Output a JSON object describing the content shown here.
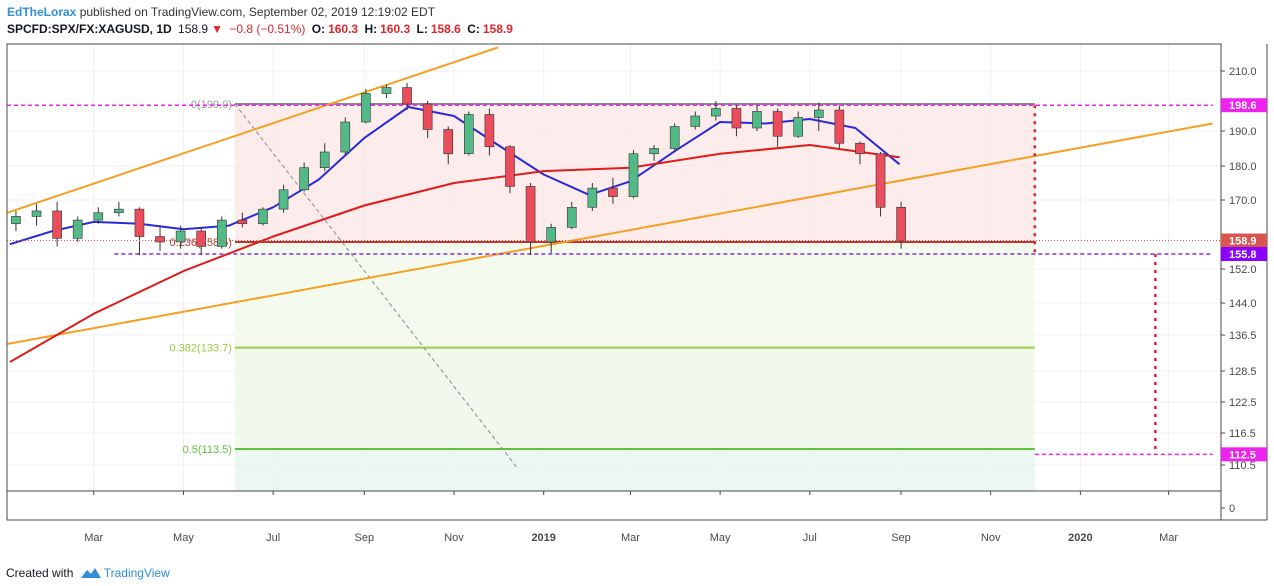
{
  "header": {
    "author": "EdTheLorax",
    "published": "published on TradingView.com, September 02, 2019 12:19:02 EDT",
    "symbol": "SPCFD:SPX/FX:XAGUSD, 1D",
    "last": "158.9",
    "change": "−0.8 (−0.51%)",
    "o_label": "O:",
    "o_value": "160.3",
    "h_label": "H:",
    "h_value": "160.3",
    "l_label": "L:",
    "l_value": "158.6",
    "c_label": "C:",
    "c_value": "158.9"
  },
  "footer": {
    "created_with": "Created with",
    "brand": "TradingView"
  },
  "colors": {
    "up": "#53b987",
    "down": "#eb4d5c",
    "ma_fast": "#2a2ad8",
    "ma_slow": "#e01b1b",
    "trendline": "#f5a023",
    "fib_top": "#888888",
    "fib_0236": "#c0392b",
    "fib_0382": "#9ccc44",
    "fib_05": "#5ec33a",
    "magenta": "#ee22ee",
    "purple": "#8a2be2",
    "red_dotted": "#e0202b"
  },
  "chart_data": {
    "type": "candlestick",
    "title": "",
    "xlabel": "",
    "ylabel": "",
    "x_ticks": [
      {
        "label": "Mar",
        "date": "2018-03-01"
      },
      {
        "label": "May",
        "date": "2018-05-01"
      },
      {
        "label": "Jul",
        "date": "2018-07-01"
      },
      {
        "label": "Sep",
        "date": "2018-09-01"
      },
      {
        "label": "Nov",
        "date": "2018-11-01"
      },
      {
        "label": "2019",
        "date": "2019-01-01"
      },
      {
        "label": "Mar",
        "date": "2019-03-01"
      },
      {
        "label": "May",
        "date": "2019-05-01"
      },
      {
        "label": "Jul",
        "date": "2019-07-01"
      },
      {
        "label": "Sep",
        "date": "2019-09-01"
      },
      {
        "label": "Nov",
        "date": "2019-11-01"
      },
      {
        "label": "2020",
        "date": "2020-01-01"
      },
      {
        "label": "Mar",
        "date": "2020-03-01"
      }
    ],
    "y_ticks": [
      "210.0",
      "190.0",
      "180.0",
      "170.0",
      "152.0",
      "144.0",
      "136.5",
      "128.5",
      "122.5",
      "116.5",
      "110.5",
      "0"
    ],
    "price_labels": [
      {
        "label": "198.6",
        "kind": "magenta"
      },
      {
        "label": "158.9",
        "kind": "last"
      },
      {
        "label": "155.8",
        "kind": "purple"
      },
      {
        "label": "112.5",
        "kind": "magenta"
      }
    ],
    "fib_levels": [
      {
        "label": "0(199.0)",
        "value": 199.0,
        "kind": "top"
      },
      {
        "label": "0.236(158.5)",
        "value": 158.5,
        "kind": "0236"
      },
      {
        "label": "0.382(133.7)",
        "value": 133.7,
        "kind": "0382"
      },
      {
        "label": "0.5(113.5)",
        "value": 113.5,
        "kind": "05"
      }
    ],
    "fib_start_date": "2018-06-05",
    "fib_end_date": "2019-12-01",
    "horizontal_levels": [
      {
        "value": 198.6,
        "kind": "magenta",
        "from_date": "2018-01-01",
        "to_date": "2020-03-31"
      },
      {
        "value": 155.8,
        "kind": "purple",
        "from_date": "2018-03-15",
        "to_date": "2020-03-31"
      },
      {
        "value": 112.5,
        "kind": "magenta",
        "from_date": "2019-12-01",
        "to_date": "2020-03-31"
      }
    ],
    "measure_arrows": [
      {
        "date": "2019-12-01",
        "from": 198.6,
        "to": 155.8
      },
      {
        "date": "2020-02-21",
        "from": 155.8,
        "to": 112.5
      }
    ],
    "trendlines": [
      {
        "points": [
          {
            "date": "2018-01-01",
            "value": 166.5
          },
          {
            "date": "2018-12-01",
            "value": 217.0
          }
        ]
      },
      {
        "points": [
          {
            "date": "2018-01-01",
            "value": 134.5
          },
          {
            "date": "2020-03-31",
            "value": 192.5
          }
        ]
      }
    ],
    "diagonal_dashed": {
      "points": [
        {
          "date": "2018-06-05",
          "value": 199.0
        },
        {
          "date": "2018-12-14",
          "value": 103.0
        }
      ]
    },
    "candles": [
      {
        "date": "2018-01-03",
        "open": 163.5,
        "high": 167.0,
        "low": 161.5,
        "close": 165.5
      },
      {
        "date": "2018-01-17",
        "open": 165.5,
        "high": 169.0,
        "low": 163.0,
        "close": 167.0
      },
      {
        "date": "2018-01-31",
        "open": 167.0,
        "high": 169.5,
        "low": 157.5,
        "close": 159.5
      },
      {
        "date": "2018-02-14",
        "open": 159.5,
        "high": 165.5,
        "low": 158.5,
        "close": 164.5
      },
      {
        "date": "2018-02-28",
        "open": 164.5,
        "high": 168.0,
        "low": 163.5,
        "close": 166.5
      },
      {
        "date": "2018-03-14",
        "open": 166.5,
        "high": 169.5,
        "low": 165.5,
        "close": 167.5
      },
      {
        "date": "2018-03-28",
        "open": 167.5,
        "high": 168.0,
        "low": 155.5,
        "close": 160.0
      },
      {
        "date": "2018-04-11",
        "open": 160.0,
        "high": 162.5,
        "low": 156.5,
        "close": 158.5
      },
      {
        "date": "2018-04-25",
        "open": 158.5,
        "high": 163.0,
        "low": 157.0,
        "close": 161.5
      },
      {
        "date": "2018-05-09",
        "open": 161.5,
        "high": 162.5,
        "low": 155.5,
        "close": 157.5
      },
      {
        "date": "2018-05-23",
        "open": 157.5,
        "high": 165.5,
        "low": 157.0,
        "close": 164.5
      },
      {
        "date": "2018-06-06",
        "open": 164.5,
        "high": 166.5,
        "low": 162.5,
        "close": 163.5
      },
      {
        "date": "2018-06-20",
        "open": 163.5,
        "high": 168.0,
        "low": 163.0,
        "close": 167.5
      },
      {
        "date": "2018-07-04",
        "open": 167.5,
        "high": 174.5,
        "low": 166.5,
        "close": 173.0
      },
      {
        "date": "2018-07-18",
        "open": 173.0,
        "high": 181.0,
        "low": 172.5,
        "close": 179.5
      },
      {
        "date": "2018-08-01",
        "open": 179.5,
        "high": 186.5,
        "low": 178.5,
        "close": 184.0
      },
      {
        "date": "2018-08-15",
        "open": 184.0,
        "high": 194.5,
        "low": 183.0,
        "close": 193.0
      },
      {
        "date": "2018-08-29",
        "open": 193.0,
        "high": 204.0,
        "low": 192.5,
        "close": 202.5
      },
      {
        "date": "2018-09-12",
        "open": 202.5,
        "high": 205.5,
        "low": 201.0,
        "close": 204.5
      },
      {
        "date": "2018-09-26",
        "open": 204.5,
        "high": 206.0,
        "low": 197.0,
        "close": 199.0
      },
      {
        "date": "2018-10-10",
        "open": 199.0,
        "high": 200.0,
        "low": 188.0,
        "close": 190.5
      },
      {
        "date": "2018-10-24",
        "open": 190.5,
        "high": 191.5,
        "low": 180.5,
        "close": 183.5
      },
      {
        "date": "2018-11-07",
        "open": 183.5,
        "high": 196.5,
        "low": 183.0,
        "close": 195.5
      },
      {
        "date": "2018-11-21",
        "open": 195.5,
        "high": 197.5,
        "low": 183.0,
        "close": 185.5
      },
      {
        "date": "2018-12-05",
        "open": 185.5,
        "high": 186.0,
        "low": 172.0,
        "close": 174.0
      },
      {
        "date": "2018-12-19",
        "open": 174.0,
        "high": 175.0,
        "low": 155.5,
        "close": 158.5
      },
      {
        "date": "2019-01-02",
        "open": 158.5,
        "high": 163.5,
        "low": 156.0,
        "close": 162.5
      },
      {
        "date": "2019-01-16",
        "open": 162.5,
        "high": 169.5,
        "low": 162.0,
        "close": 168.0
      },
      {
        "date": "2019-01-30",
        "open": 168.0,
        "high": 175.0,
        "low": 167.0,
        "close": 173.5
      },
      {
        "date": "2019-02-13",
        "open": 173.5,
        "high": 176.5,
        "low": 169.0,
        "close": 171.0
      },
      {
        "date": "2019-02-27",
        "open": 171.0,
        "high": 184.5,
        "low": 170.5,
        "close": 183.5
      },
      {
        "date": "2019-03-13",
        "open": 183.5,
        "high": 186.0,
        "low": 181.5,
        "close": 185.0
      },
      {
        "date": "2019-03-27",
        "open": 185.0,
        "high": 192.5,
        "low": 184.0,
        "close": 191.5
      },
      {
        "date": "2019-04-10",
        "open": 191.5,
        "high": 196.5,
        "low": 190.5,
        "close": 195.0
      },
      {
        "date": "2019-04-24",
        "open": 195.0,
        "high": 200.0,
        "low": 193.5,
        "close": 197.5
      },
      {
        "date": "2019-05-08",
        "open": 197.5,
        "high": 198.5,
        "low": 188.5,
        "close": 191.0
      },
      {
        "date": "2019-05-22",
        "open": 191.0,
        "high": 198.5,
        "low": 190.0,
        "close": 196.5
      },
      {
        "date": "2019-06-05",
        "open": 196.5,
        "high": 197.5,
        "low": 185.5,
        "close": 188.5
      },
      {
        "date": "2019-06-19",
        "open": 188.5,
        "high": 196.5,
        "low": 188.0,
        "close": 194.5
      },
      {
        "date": "2019-07-03",
        "open": 194.5,
        "high": 199.5,
        "low": 190.0,
        "close": 197.0
      },
      {
        "date": "2019-07-17",
        "open": 197.0,
        "high": 198.5,
        "low": 185.0,
        "close": 186.5
      },
      {
        "date": "2019-07-31",
        "open": 186.5,
        "high": 187.0,
        "low": 180.5,
        "close": 183.5
      },
      {
        "date": "2019-08-14",
        "open": 183.5,
        "high": 184.0,
        "low": 165.5,
        "close": 168.0
      },
      {
        "date": "2019-08-28",
        "open": 168.0,
        "high": 169.5,
        "low": 157.0,
        "close": 158.9
      }
    ],
    "series": [
      {
        "name": "",
        "kind": "ma_fast",
        "points": [
          {
            "date": "2018-01-03",
            "value": 158.0
          },
          {
            "date": "2018-02-01",
            "value": 161.5
          },
          {
            "date": "2018-03-01",
            "value": 164.0
          },
          {
            "date": "2018-04-01",
            "value": 163.5
          },
          {
            "date": "2018-05-01",
            "value": 162.0
          },
          {
            "date": "2018-06-01",
            "value": 163.0
          },
          {
            "date": "2018-07-01",
            "value": 168.0
          },
          {
            "date": "2018-08-01",
            "value": 176.0
          },
          {
            "date": "2018-09-01",
            "value": 188.0
          },
          {
            "date": "2018-10-01",
            "value": 198.0
          },
          {
            "date": "2018-11-01",
            "value": 195.0
          },
          {
            "date": "2018-12-01",
            "value": 186.0
          },
          {
            "date": "2019-01-01",
            "value": 177.5
          },
          {
            "date": "2019-02-01",
            "value": 171.5
          },
          {
            "date": "2019-03-01",
            "value": 175.5
          },
          {
            "date": "2019-04-01",
            "value": 184.5
          },
          {
            "date": "2019-05-01",
            "value": 193.0
          },
          {
            "date": "2019-06-01",
            "value": 192.5
          },
          {
            "date": "2019-07-01",
            "value": 194.0
          },
          {
            "date": "2019-08-01",
            "value": 191.0
          },
          {
            "date": "2019-08-31",
            "value": 180.5
          }
        ]
      },
      {
        "name": "",
        "kind": "ma_slow",
        "points": [
          {
            "date": "2018-01-03",
            "value": 130.5
          },
          {
            "date": "2018-03-01",
            "value": 141.5
          },
          {
            "date": "2018-05-01",
            "value": 151.5
          },
          {
            "date": "2018-07-01",
            "value": 160.0
          },
          {
            "date": "2018-09-01",
            "value": 168.5
          },
          {
            "date": "2018-11-01",
            "value": 175.0
          },
          {
            "date": "2019-01-01",
            "value": 178.5
          },
          {
            "date": "2019-03-01",
            "value": 179.5
          },
          {
            "date": "2019-05-01",
            "value": 183.5
          },
          {
            "date": "2019-07-01",
            "value": 186.0
          },
          {
            "date": "2019-08-31",
            "value": 182.5
          }
        ]
      }
    ]
  }
}
